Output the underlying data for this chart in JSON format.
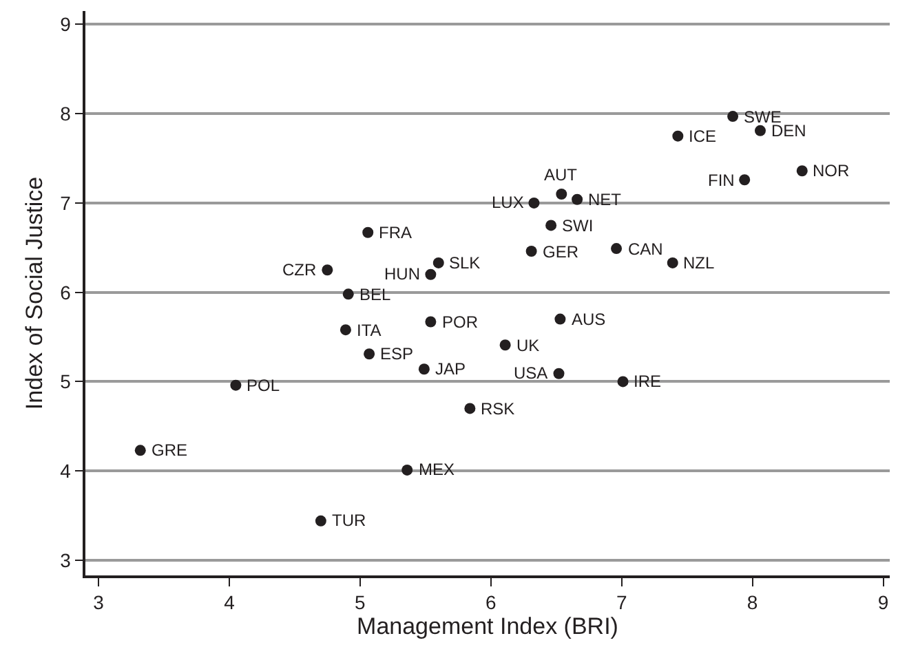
{
  "chart_data": {
    "type": "scatter",
    "xlabel": "Management Index (BRI)",
    "ylabel": "Index of Social Justice",
    "x": [
      7.85,
      7.43,
      8.06,
      7.94,
      8.38,
      6.54,
      6.66,
      6.33,
      6.46,
      5.06,
      6.31,
      6.96,
      7.39,
      5.54,
      5.6,
      4.75,
      4.91,
      4.89,
      5.54,
      6.53,
      6.11,
      5.07,
      5.49,
      6.52,
      7.01,
      4.05,
      5.84,
      3.32,
      5.36,
      4.7
    ],
    "values": [
      7.97,
      7.75,
      7.81,
      7.26,
      7.36,
      7.1,
      7.04,
      7.0,
      6.75,
      6.67,
      6.46,
      6.49,
      6.33,
      6.2,
      6.33,
      6.25,
      5.98,
      5.58,
      5.67,
      5.7,
      5.41,
      5.31,
      5.14,
      5.09,
      5.0,
      4.96,
      4.7,
      4.23,
      4.01,
      3.44
    ],
    "color": "#231f20",
    "marker": "circle",
    "annotations": [
      {
        "text": "SWE",
        "x": 7.85,
        "y": 7.97
      },
      {
        "text": "ICE",
        "x": 7.43,
        "y": 7.75
      },
      {
        "text": "DEN",
        "x": 8.06,
        "y": 7.81
      },
      {
        "text": "FIN",
        "x": 7.94,
        "y": 7.26
      },
      {
        "text": "NOR",
        "x": 8.38,
        "y": 7.36
      },
      {
        "text": "NET",
        "x": 6.66,
        "y": 7.04
      },
      {
        "text": "AUT",
        "x": 6.54,
        "y": 7.1
      },
      {
        "text": "LUX",
        "x": 6.33,
        "y": 7.0
      },
      {
        "text": "SWI",
        "x": 6.46,
        "y": 6.75
      },
      {
        "text": "FRA",
        "x": 5.06,
        "y": 6.67
      },
      {
        "text": "GER",
        "x": 6.31,
        "y": 6.46
      },
      {
        "text": "CAN",
        "x": 6.96,
        "y": 6.49
      },
      {
        "text": "NZL",
        "x": 7.39,
        "y": 6.33
      },
      {
        "text": "HUN",
        "x": 5.54,
        "y": 6.2
      },
      {
        "text": "SLK",
        "x": 5.6,
        "y": 6.33
      },
      {
        "text": "CZR",
        "x": 4.75,
        "y": 6.25
      },
      {
        "text": "BEL",
        "x": 4.91,
        "y": 5.98
      },
      {
        "text": "ITA",
        "x": 4.89,
        "y": 5.58
      },
      {
        "text": "POR",
        "x": 5.54,
        "y": 5.67
      },
      {
        "text": "AUS",
        "x": 6.53,
        "y": 5.7
      },
      {
        "text": "UK",
        "x": 6.11,
        "y": 5.41
      },
      {
        "text": "ESP",
        "x": 5.07,
        "y": 5.31
      },
      {
        "text": "JAP",
        "x": 5.49,
        "y": 5.14
      },
      {
        "text": "USA",
        "x": 6.52,
        "y": 5.09
      },
      {
        "text": "IRE",
        "x": 7.01,
        "y": 5.0
      },
      {
        "text": "POL",
        "x": 4.05,
        "y": 4.96
      },
      {
        "text": "RSK",
        "x": 5.84,
        "y": 4.7
      },
      {
        "text": "GRE",
        "x": 3.32,
        "y": 4.23
      },
      {
        "text": "MEX",
        "x": 5.36,
        "y": 4.01
      },
      {
        "text": "TUR",
        "x": 4.7,
        "y": 3.44
      }
    ],
    "xlim": [
      2.9,
      9.05
    ],
    "ylim": [
      2.83,
      9.15
    ],
    "xticks": [
      3,
      4,
      5,
      6,
      7,
      8,
      9
    ],
    "yticks": [
      3,
      4,
      5,
      6,
      7,
      8,
      9
    ],
    "grid": "y"
  }
}
